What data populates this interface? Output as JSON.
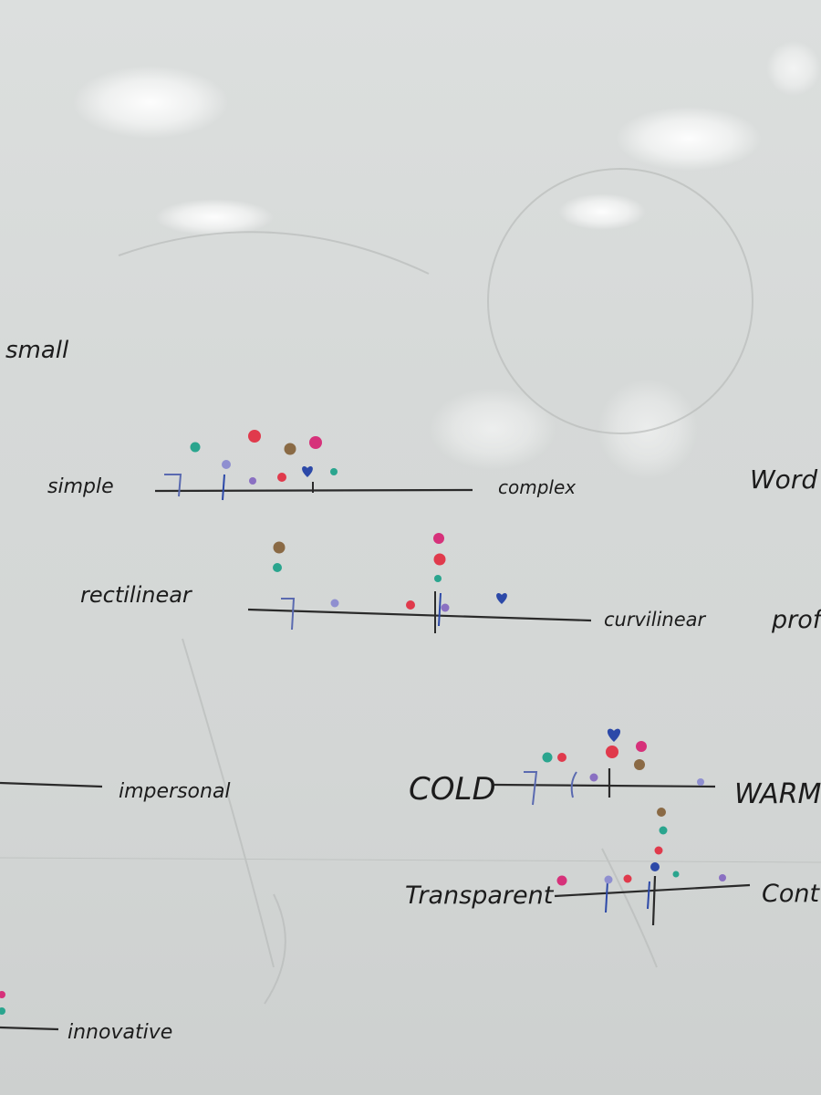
{
  "board": {
    "labels": {
      "small": "small",
      "simple": "simple",
      "complex": "complex",
      "word": "Word",
      "rectilinear": "rectilinear",
      "curvilinear": "curvilinear",
      "prof": "prof",
      "impersonal": "impersonal",
      "cold": "COLD",
      "warm": "WARM",
      "transparent": "Transparent",
      "cont": "Cont",
      "innovative": "innovative"
    },
    "colors": {
      "line": "#2a2a2a",
      "blue": "#2c49a8",
      "teal": "#2aa58e",
      "pink": "#d6317a",
      "red": "#e03a4c",
      "brown": "#8a6a45",
      "purple": "#8a70c2",
      "lavender": "#8f8fd0"
    }
  }
}
